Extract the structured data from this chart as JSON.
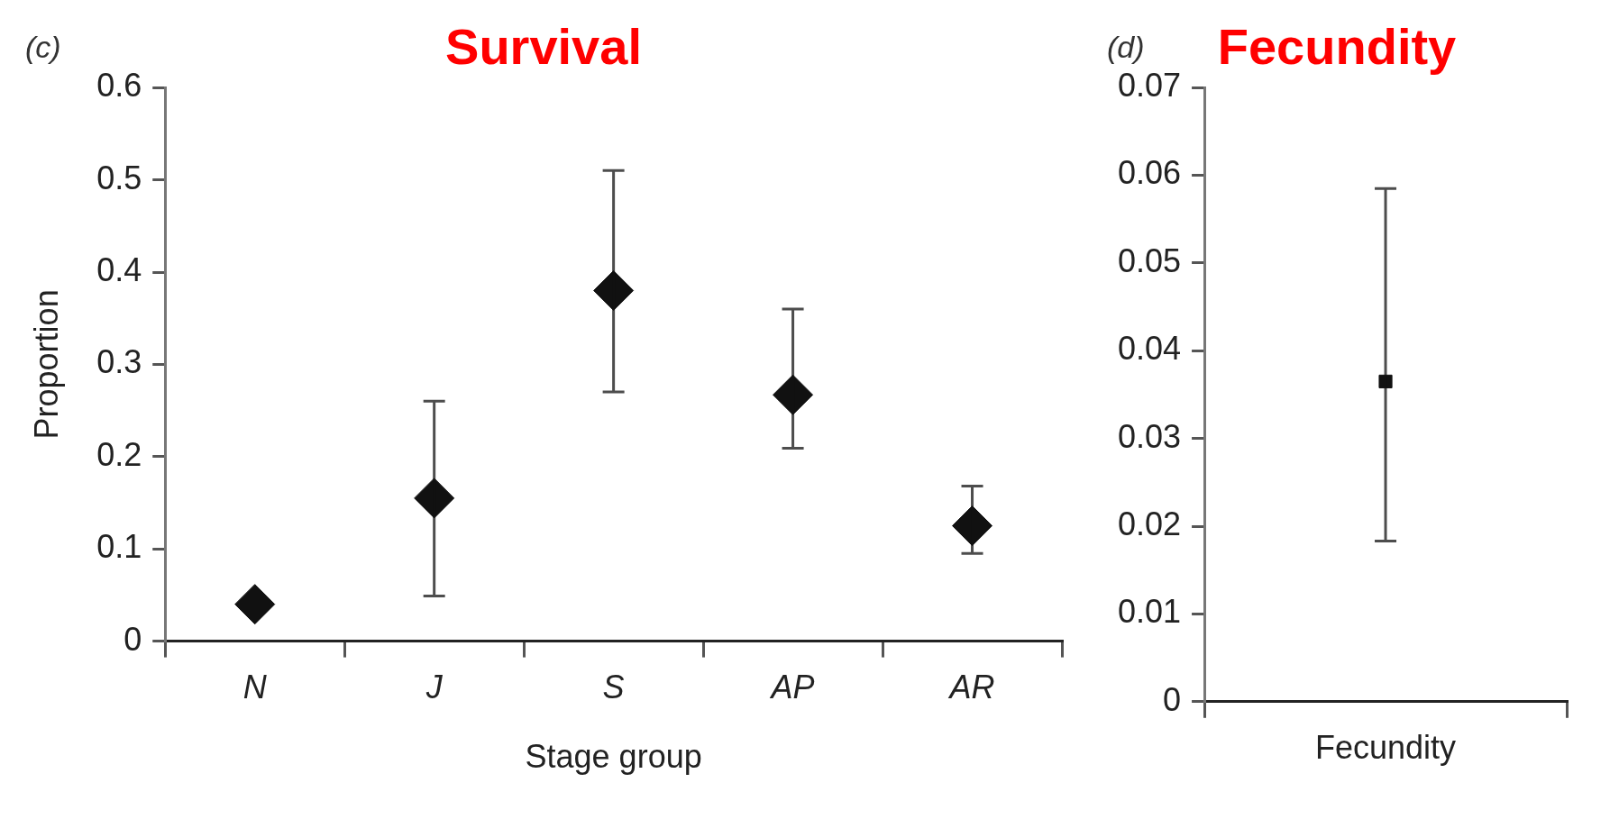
{
  "chart_data": [
    {
      "type": "scatter",
      "title": "Survival",
      "annotations": [
        "(c)"
      ],
      "xlabel": "Stage group",
      "ylabel": "Proportion",
      "categories": [
        "N",
        "J",
        "S",
        "AP",
        "AR"
      ],
      "series": [
        {
          "color": "#111111",
          "values": [
            0.04,
            0.155,
            0.38,
            0.267,
            0.125
          ],
          "errors": [
            null,
            [
              0.049,
              0.26
            ],
            [
              0.27,
              0.51
            ],
            [
              0.209,
              0.36
            ],
            [
              0.095,
              0.168
            ]
          ]
        }
      ],
      "marker": "diamond",
      "ylim": [
        0,
        0.6
      ],
      "yticks": [
        0,
        0.1,
        0.2,
        0.3,
        0.4,
        0.5,
        0.6
      ],
      "grid": false,
      "legend": false
    },
    {
      "type": "scatter",
      "title": "Fecundity",
      "annotations": [
        "(d)"
      ],
      "categories": [
        "Fecundity"
      ],
      "series": [
        {
          "color": "#111111",
          "values": [
            0.0365
          ],
          "errors": [
            [
              0.0183,
              0.0585
            ]
          ]
        }
      ],
      "marker": "square",
      "ylim": [
        0,
        0.07
      ],
      "yticks": [
        0,
        0.01,
        0.02,
        0.03,
        0.04,
        0.05,
        0.06,
        0.07
      ],
      "grid": false,
      "legend": false
    }
  ]
}
